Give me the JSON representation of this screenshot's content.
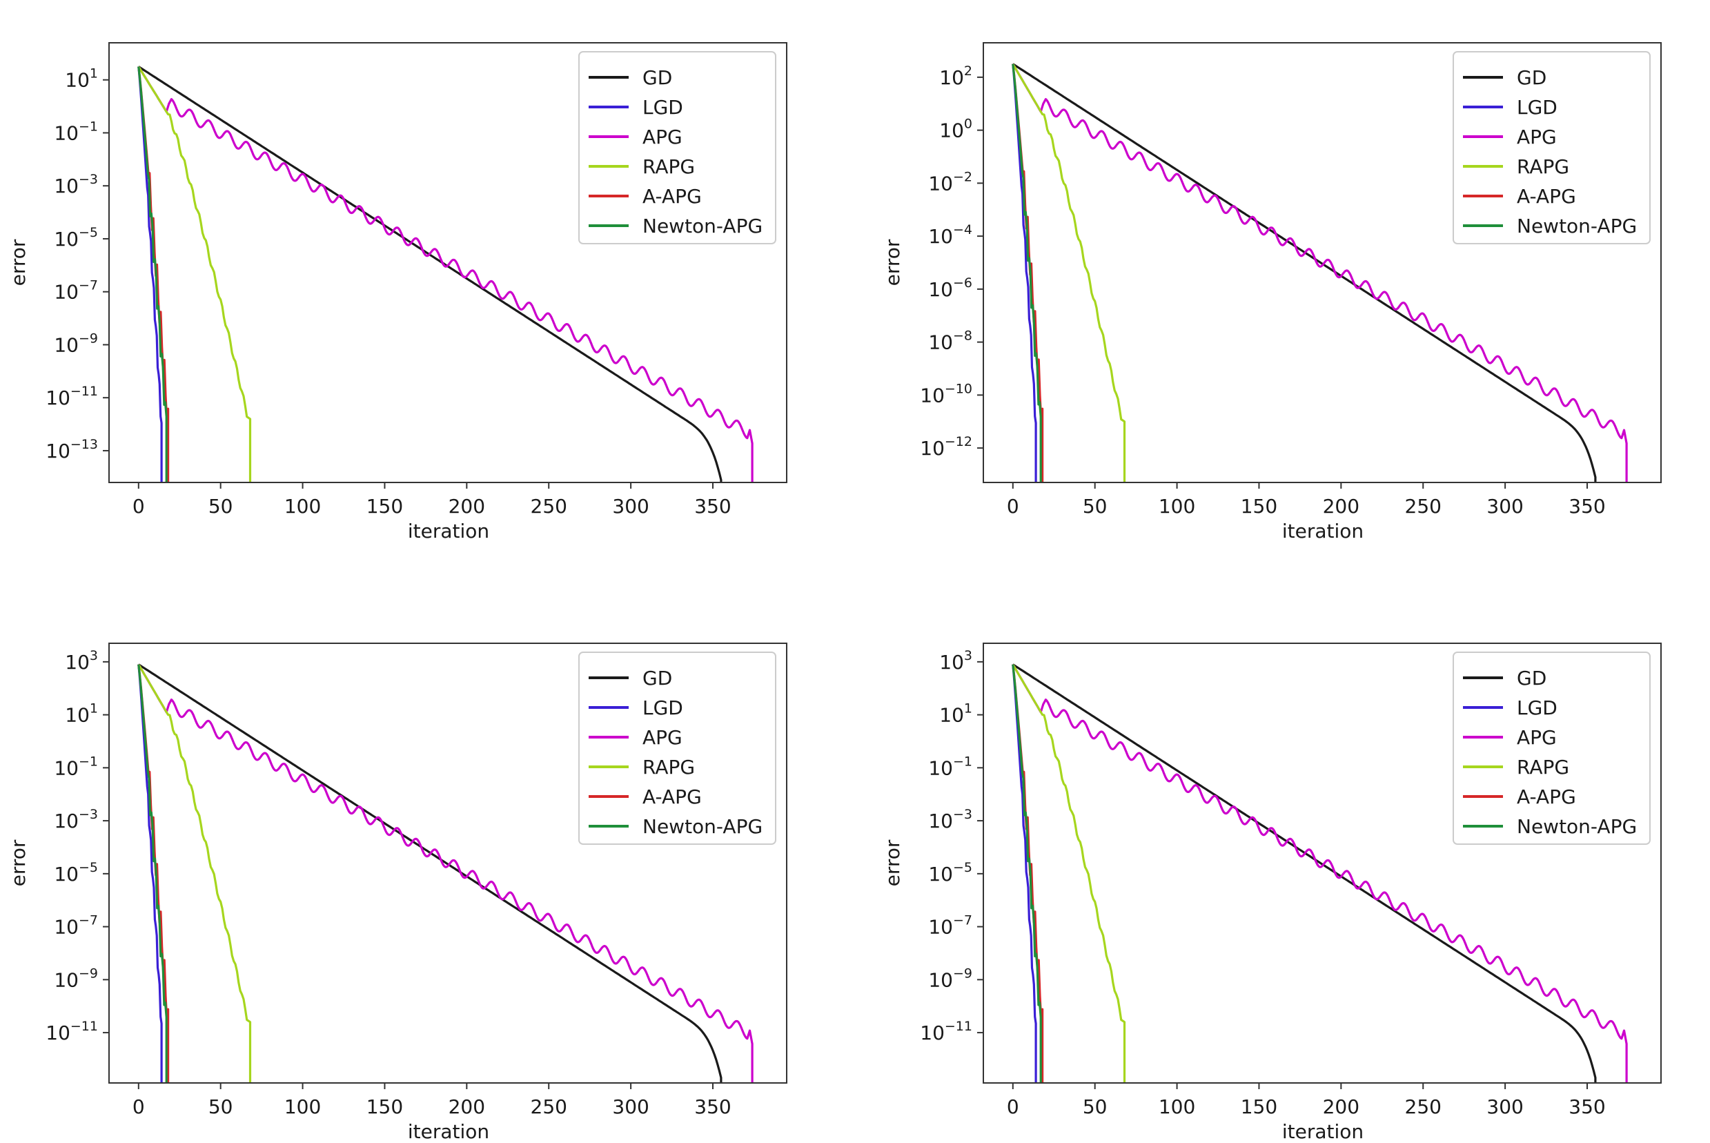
{
  "colors": {
    "GD": "#1a1a1a",
    "LGD": "#3a1fd6",
    "APG": "#cc00cc",
    "RAPG": "#a6d61e",
    "A-APG": "#d62728",
    "Newton-APG": "#1f8f3a",
    "axes": "#333333",
    "legend_border": "#cccccc"
  },
  "chart_data": [
    {
      "type": "line",
      "panel": "top-left",
      "title": "",
      "xlabel": "iteration",
      "ylabel": "error",
      "yscale": "log",
      "xlim": [
        -18,
        395
      ],
      "ylim_log10": [
        -14.2,
        2.4
      ],
      "xticks": [
        0,
        50,
        100,
        150,
        200,
        250,
        300,
        350
      ],
      "yticks": [
        {
          "label": "10",
          "exp": "1",
          "value": 1
        },
        {
          "label": "10",
          "exp": "−1",
          "value": -1
        },
        {
          "label": "10",
          "exp": "−3",
          "value": -3
        },
        {
          "label": "10",
          "exp": "−5",
          "value": -5
        },
        {
          "label": "10",
          "exp": "−7",
          "value": -7
        },
        {
          "label": "10",
          "exp": "−9",
          "value": -9
        },
        {
          "label": "10",
          "exp": "−11",
          "value": -11
        },
        {
          "label": "10",
          "exp": "−13",
          "value": -13
        }
      ],
      "legend": [
        "GD",
        "LGD",
        "APG",
        "RAPG",
        "A-APG",
        "Newton-APG"
      ],
      "legend_position": "top-right",
      "series": {
        "start": 1.5,
        "gd": {
          "end_x": 355,
          "slope": -0.04,
          "knee_x": 330,
          "end": -14.2
        },
        "lgd": {
          "end_x": 14
        },
        "apg": {
          "peak_x": 20,
          "peak": 0.1,
          "end_x": 374,
          "slope": -0.0352,
          "osc_amp": 0.22,
          "osc_period": 11.5
        },
        "rapg": {
          "end_x": 68,
          "knee_x": 18,
          "knee": -0.3,
          "end_min": -11.6
        },
        "aapg": {
          "end_x": 18
        },
        "newton": {
          "end_x": 17
        }
      }
    },
    {
      "type": "line",
      "panel": "top-right",
      "title": "",
      "xlabel": "iteration",
      "ylabel": "error",
      "yscale": "log",
      "xlim": [
        -18,
        395
      ],
      "ylim_log10": [
        -13.3,
        3.3
      ],
      "xticks": [
        0,
        50,
        100,
        150,
        200,
        250,
        300,
        350
      ],
      "yticks": [
        {
          "label": "10",
          "exp": "2",
          "value": 2
        },
        {
          "label": "10",
          "exp": "0",
          "value": 0
        },
        {
          "label": "10",
          "exp": "−2",
          "value": -2
        },
        {
          "label": "10",
          "exp": "−4",
          "value": -4
        },
        {
          "label": "10",
          "exp": "−6",
          "value": -6
        },
        {
          "label": "10",
          "exp": "−8",
          "value": -8
        },
        {
          "label": "10",
          "exp": "−10",
          "value": -10
        },
        {
          "label": "10",
          "exp": "−12",
          "value": -12
        }
      ],
      "legend": [
        "GD",
        "LGD",
        "APG",
        "RAPG",
        "A-APG",
        "Newton-APG"
      ],
      "legend_position": "top-right",
      "series": {
        "start": 2.5,
        "gd": {
          "end_x": 355,
          "slope": -0.04,
          "knee_x": 330,
          "end": -13.3
        },
        "lgd": {
          "end_x": 14
        },
        "apg": {
          "peak_x": 20,
          "peak": 1.0,
          "end_x": 374,
          "slope": -0.0352,
          "osc_amp": 0.22,
          "osc_period": 11.5
        },
        "rapg": {
          "end_x": 68,
          "knee_x": 18,
          "knee": 0.6,
          "end_min": -10.8
        },
        "aapg": {
          "end_x": 18
        },
        "newton": {
          "end_x": 17
        }
      }
    },
    {
      "type": "line",
      "panel": "bottom-left",
      "title": "",
      "xlabel": "iteration",
      "ylabel": "error",
      "yscale": "log",
      "xlim": [
        -18,
        395
      ],
      "ylim_log10": [
        -12.9,
        3.7
      ],
      "xticks": [
        0,
        50,
        100,
        150,
        200,
        250,
        300,
        350
      ],
      "yticks": [
        {
          "label": "10",
          "exp": "3",
          "value": 3
        },
        {
          "label": "10",
          "exp": "1",
          "value": 1
        },
        {
          "label": "10",
          "exp": "−1",
          "value": -1
        },
        {
          "label": "10",
          "exp": "−3",
          "value": -3
        },
        {
          "label": "10",
          "exp": "−5",
          "value": -5
        },
        {
          "label": "10",
          "exp": "−7",
          "value": -7
        },
        {
          "label": "10",
          "exp": "−9",
          "value": -9
        },
        {
          "label": "10",
          "exp": "−11",
          "value": -11
        }
      ],
      "legend": [
        "GD",
        "LGD",
        "APG",
        "RAPG",
        "A-APG",
        "Newton-APG"
      ],
      "legend_position": "top-right",
      "series": {
        "start": 2.9,
        "gd": {
          "end_x": 355,
          "slope": -0.04,
          "knee_x": 330,
          "end": -12.9
        },
        "lgd": {
          "end_x": 14
        },
        "apg": {
          "peak_x": 20,
          "peak": 1.4,
          "end_x": 374,
          "slope": -0.0352,
          "osc_amp": 0.22,
          "osc_period": 11.5
        },
        "rapg": {
          "end_x": 68,
          "knee_x": 18,
          "knee": 1.0,
          "end_min": -10.4
        },
        "aapg": {
          "end_x": 18
        },
        "newton": {
          "end_x": 17
        }
      }
    },
    {
      "type": "line",
      "panel": "bottom-right",
      "title": "",
      "xlabel": "iteration",
      "ylabel": "error",
      "yscale": "log",
      "xlim": [
        -18,
        395
      ],
      "ylim_log10": [
        -12.9,
        3.7
      ],
      "xticks": [
        0,
        50,
        100,
        150,
        200,
        250,
        300,
        350
      ],
      "yticks": [
        {
          "label": "10",
          "exp": "3",
          "value": 3
        },
        {
          "label": "10",
          "exp": "1",
          "value": 1
        },
        {
          "label": "10",
          "exp": "−1",
          "value": -1
        },
        {
          "label": "10",
          "exp": "−3",
          "value": -3
        },
        {
          "label": "10",
          "exp": "−5",
          "value": -5
        },
        {
          "label": "10",
          "exp": "−7",
          "value": -7
        },
        {
          "label": "10",
          "exp": "−9",
          "value": -9
        },
        {
          "label": "10",
          "exp": "−11",
          "value": -11
        }
      ],
      "legend": [
        "GD",
        "LGD",
        "APG",
        "RAPG",
        "A-APG",
        "Newton-APG"
      ],
      "legend_position": "top-right",
      "series": {
        "start": 2.9,
        "gd": {
          "end_x": 355,
          "slope": -0.04,
          "knee_x": 330,
          "end": -12.9
        },
        "lgd": {
          "end_x": 14
        },
        "apg": {
          "peak_x": 20,
          "peak": 1.4,
          "end_x": 374,
          "slope": -0.0352,
          "osc_amp": 0.22,
          "osc_period": 11.5
        },
        "rapg": {
          "end_x": 68,
          "knee_x": 18,
          "knee": 1.0,
          "end_min": -10.4
        },
        "aapg": {
          "end_x": 18
        },
        "newton": {
          "end_x": 17
        }
      }
    }
  ]
}
